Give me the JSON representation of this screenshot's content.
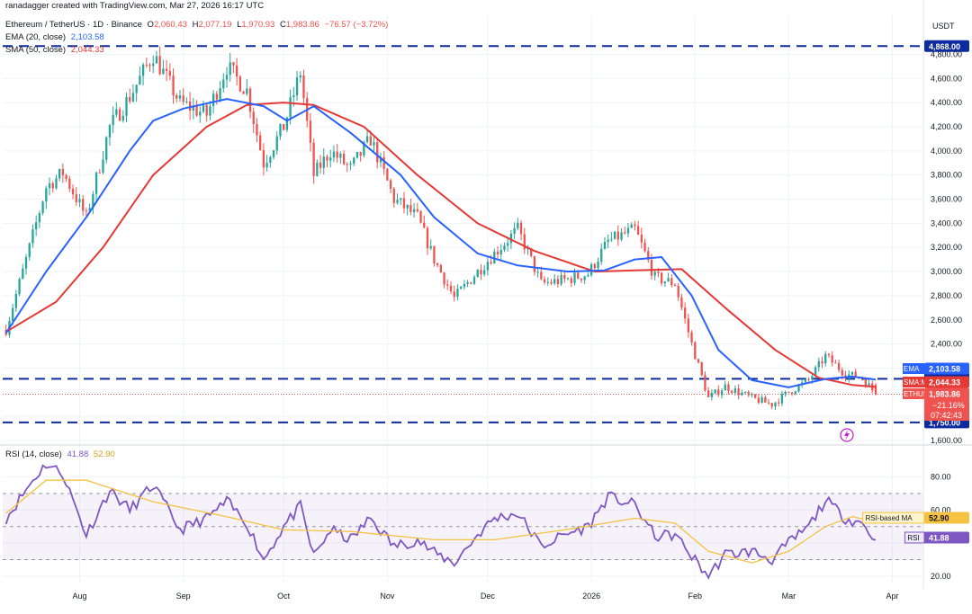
{
  "header": {
    "author_line": "ranadagger created with TradingView.com, Mar 27, 2026 16:17 UTC",
    "symbol": "Ethereum / TetherUS · 1D · Binance",
    "ohlc": {
      "o_label": "O",
      "o": "2,060.43",
      "h_label": "H",
      "h": "2,077.19",
      "l_label": "L",
      "l": "1,970.93",
      "c_label": "C",
      "c": "1,983.86",
      "change": "−76.57 (−3.72%)"
    },
    "ema_label": "EMA (20, close)",
    "ema_value": "2,103.58",
    "sma_label": "SMA (50, close)",
    "sma_value": "2,044.33",
    "rsi_label": "RSI (14, close)",
    "rsi_value": "41.88",
    "rsi_ma_value": "52.90"
  },
  "colors": {
    "up": "#26a69a",
    "down": "#ef5350",
    "ema": "#2962ff",
    "sma": "#e53935",
    "rsi": "#7e57c2",
    "rsi_ma": "#f5c242",
    "level": "#0d2a9e",
    "grid": "#f0f3fa",
    "axis_text": "#131722"
  },
  "chart_data": [
    {
      "type": "candlestick",
      "title": "Ethereum / TetherUS · 1D · Binance",
      "currency": "USDT",
      "ylim": [
        1600,
        4900
      ],
      "y_ticks": [
        1600,
        1800,
        2000,
        2200,
        2400,
        2600,
        2800,
        3000,
        3200,
        3400,
        3600,
        3800,
        4000,
        4200,
        4400,
        4600,
        4800
      ],
      "y_tick_labels": [
        "1,600.00",
        "1,800.00",
        "2,000.00",
        "2,200.00",
        "2,400.00",
        "2,600.00",
        "2,800.00",
        "3,000.00",
        "3,200.00",
        "3,400.00",
        "3,600.00",
        "3,800.00",
        "4,000.00",
        "4,200.00",
        "4,400.00",
        "4,600.00",
        "4,800.00"
      ],
      "x_ticks": [
        "Aug",
        "Sep",
        "Oct",
        "Nov",
        "Dec",
        "2026",
        "Feb",
        "Mar",
        "Apr"
      ],
      "horizontal_levels": [
        {
          "value": 4868,
          "label": "4,868.00"
        },
        {
          "value": 2111,
          "label": "2,111.00"
        },
        {
          "value": 1750,
          "label": "1,750.00"
        }
      ],
      "price_path": [
        {
          "date": "Jul 10",
          "price": 2520
        },
        {
          "date": "Jul 16",
          "price": 3100
        },
        {
          "date": "Jul 22",
          "price": 3700
        },
        {
          "date": "Jul 27",
          "price": 3820
        },
        {
          "date": "Aug 3",
          "price": 3450
        },
        {
          "date": "Aug 10",
          "price": 4200
        },
        {
          "date": "Aug 16",
          "price": 4450
        },
        {
          "date": "Aug 23",
          "price": 4800
        },
        {
          "date": "Aug 31",
          "price": 4400
        },
        {
          "date": "Sep 8",
          "price": 4300
        },
        {
          "date": "Sep 14",
          "price": 4700
        },
        {
          "date": "Sep 20",
          "price": 4500
        },
        {
          "date": "Sep 25",
          "price": 3900
        },
        {
          "date": "Oct 1",
          "price": 4200
        },
        {
          "date": "Oct 6",
          "price": 4650
        },
        {
          "date": "Oct 10",
          "price": 3800
        },
        {
          "date": "Oct 15",
          "price": 4000
        },
        {
          "date": "Oct 21",
          "price": 3850
        },
        {
          "date": "Oct 27",
          "price": 4100
        },
        {
          "date": "Nov 3",
          "price": 3600
        },
        {
          "date": "Nov 10",
          "price": 3450
        },
        {
          "date": "Nov 15",
          "price": 3100
        },
        {
          "date": "Nov 21",
          "price": 2780
        },
        {
          "date": "Nov 28",
          "price": 3000
        },
        {
          "date": "Dec 3",
          "price": 3150
        },
        {
          "date": "Dec 10",
          "price": 3350
        },
        {
          "date": "Dec 17",
          "price": 2900
        },
        {
          "date": "Dec 24",
          "price": 2930
        },
        {
          "date": "Dec 31",
          "price": 2980
        },
        {
          "date": "Jan 6",
          "price": 3250
        },
        {
          "date": "Jan 14",
          "price": 3350
        },
        {
          "date": "Jan 20",
          "price": 2950
        },
        {
          "date": "Jan 26",
          "price": 2900
        },
        {
          "date": "Jan 31",
          "price": 2400
        },
        {
          "date": "Feb 5",
          "price": 1950
        },
        {
          "date": "Feb 10",
          "price": 2050
        },
        {
          "date": "Feb 18",
          "price": 1950
        },
        {
          "date": "Feb 24",
          "price": 1900
        },
        {
          "date": "Mar 1",
          "price": 2000
        },
        {
          "date": "Mar 7",
          "price": 2100
        },
        {
          "date": "Mar 12",
          "price": 2300
        },
        {
          "date": "Mar 18",
          "price": 2150
        },
        {
          "date": "Mar 23",
          "price": 2120
        },
        {
          "date": "Mar 27",
          "price": 1984
        }
      ],
      "ema20_path": [
        {
          "date": "Jul 10",
          "value": 2490
        },
        {
          "date": "Jul 22",
          "value": 3000
        },
        {
          "date": "Aug 3",
          "value": 3450
        },
        {
          "date": "Aug 16",
          "value": 4000
        },
        {
          "date": "Aug 23",
          "value": 4250
        },
        {
          "date": "Sep 1",
          "value": 4350
        },
        {
          "date": "Sep 14",
          "value": 4430
        },
        {
          "date": "Sep 25",
          "value": 4370
        },
        {
          "date": "Oct 2",
          "value": 4250
        },
        {
          "date": "Oct 10",
          "value": 4370
        },
        {
          "date": "Oct 21",
          "value": 4150
        },
        {
          "date": "Nov 5",
          "value": 3800
        },
        {
          "date": "Nov 15",
          "value": 3450
        },
        {
          "date": "Nov 28",
          "value": 3150
        },
        {
          "date": "Dec 10",
          "value": 3050
        },
        {
          "date": "Dec 25",
          "value": 3000
        },
        {
          "date": "Jan 5",
          "value": 3010
        },
        {
          "date": "Jan 14",
          "value": 3100
        },
        {
          "date": "Jan 22",
          "value": 3120
        },
        {
          "date": "Jan 31",
          "value": 2800
        },
        {
          "date": "Feb 8",
          "value": 2350
        },
        {
          "date": "Feb 18",
          "value": 2100
        },
        {
          "date": "Mar 1",
          "value": 2040
        },
        {
          "date": "Mar 12",
          "value": 2110
        },
        {
          "date": "Mar 20",
          "value": 2130
        },
        {
          "date": "Mar 27",
          "value": 2104
        }
      ],
      "sma50_path": [
        {
          "date": "Jul 10",
          "value": 2500
        },
        {
          "date": "Jul 25",
          "value": 2750
        },
        {
          "date": "Aug 8",
          "value": 3200
        },
        {
          "date": "Aug 23",
          "value": 3800
        },
        {
          "date": "Sep 8",
          "value": 4200
        },
        {
          "date": "Sep 20",
          "value": 4380
        },
        {
          "date": "Oct 1",
          "value": 4400
        },
        {
          "date": "Oct 10",
          "value": 4380
        },
        {
          "date": "Oct 25",
          "value": 4200
        },
        {
          "date": "Nov 10",
          "value": 3800
        },
        {
          "date": "Nov 28",
          "value": 3400
        },
        {
          "date": "Dec 15",
          "value": 3170
        },
        {
          "date": "Jan 2",
          "value": 3000
        },
        {
          "date": "Jan 14",
          "value": 3010
        },
        {
          "date": "Jan 28",
          "value": 3020
        },
        {
          "date": "Feb 10",
          "value": 2700
        },
        {
          "date": "Feb 25",
          "value": 2350
        },
        {
          "date": "Mar 10",
          "value": 2120
        },
        {
          "date": "Mar 20",
          "value": 2060
        },
        {
          "date": "Mar 27",
          "value": 2044
        }
      ],
      "series_labels": [
        {
          "name": "EMA",
          "value": "2,103.58"
        },
        {
          "name": "SMA:MA",
          "value": "2,044.33"
        },
        {
          "name": "ETHUSDT",
          "value": "1,983.86",
          "extra": [
            "−21.16%",
            "07:42:43"
          ]
        }
      ],
      "last_price": 1983.86
    },
    {
      "type": "line",
      "title": "RSI (14, close)",
      "ylim": [
        15,
        95
      ],
      "y_ticks": [
        20,
        40,
        60,
        80
      ],
      "y_tick_labels": [
        "20.00",
        "",
        "60.00",
        "80.00"
      ],
      "overbought": 70,
      "oversold": 30,
      "midline": 50,
      "series": [
        {
          "name": "RSI",
          "values_path": [
            {
              "date": "Jul 10",
              "value": 55
            },
            {
              "date": "Jul 18",
              "value": 78
            },
            {
              "date": "Jul 22",
              "value": 88
            },
            {
              "date": "Jul 27",
              "value": 82
            },
            {
              "date": "Aug 3",
              "value": 45
            },
            {
              "date": "Aug 10",
              "value": 72
            },
            {
              "date": "Aug 16",
              "value": 60
            },
            {
              "date": "Aug 23",
              "value": 75
            },
            {
              "date": "Aug 31",
              "value": 48
            },
            {
              "date": "Sep 8",
              "value": 55
            },
            {
              "date": "Sep 14",
              "value": 65
            },
            {
              "date": "Sep 20",
              "value": 52
            },
            {
              "date": "Sep 25",
              "value": 30
            },
            {
              "date": "Oct 1",
              "value": 50
            },
            {
              "date": "Oct 6",
              "value": 62
            },
            {
              "date": "Oct 10",
              "value": 32
            },
            {
              "date": "Oct 15",
              "value": 48
            },
            {
              "date": "Oct 21",
              "value": 42
            },
            {
              "date": "Oct 27",
              "value": 55
            },
            {
              "date": "Nov 3",
              "value": 38
            },
            {
              "date": "Nov 10",
              "value": 42
            },
            {
              "date": "Nov 15",
              "value": 34
            },
            {
              "date": "Nov 21",
              "value": 28
            },
            {
              "date": "Nov 28",
              "value": 45
            },
            {
              "date": "Dec 3",
              "value": 55
            },
            {
              "date": "Dec 10",
              "value": 58
            },
            {
              "date": "Dec 17",
              "value": 38
            },
            {
              "date": "Dec 24",
              "value": 45
            },
            {
              "date": "Dec 31",
              "value": 50
            },
            {
              "date": "Jan 6",
              "value": 68
            },
            {
              "date": "Jan 14",
              "value": 63
            },
            {
              "date": "Jan 20",
              "value": 44
            },
            {
              "date": "Jan 26",
              "value": 45
            },
            {
              "date": "Jan 31",
              "value": 32
            },
            {
              "date": "Feb 5",
              "value": 20
            },
            {
              "date": "Feb 10",
              "value": 33
            },
            {
              "date": "Feb 18",
              "value": 35
            },
            {
              "date": "Feb 24",
              "value": 30
            },
            {
              "date": "Mar 1",
              "value": 40
            },
            {
              "date": "Mar 7",
              "value": 50
            },
            {
              "date": "Mar 12",
              "value": 66
            },
            {
              "date": "Mar 18",
              "value": 55
            },
            {
              "date": "Mar 23",
              "value": 52
            },
            {
              "date": "Mar 27",
              "value": 41.88
            }
          ]
        },
        {
          "name": "RSI-based MA",
          "values_path": [
            {
              "date": "Jul 10",
              "value": 58
            },
            {
              "date": "Jul 22",
              "value": 78
            },
            {
              "date": "Aug 3",
              "value": 78
            },
            {
              "date": "Aug 23",
              "value": 65
            },
            {
              "date": "Sep 14",
              "value": 56
            },
            {
              "date": "Oct 1",
              "value": 48
            },
            {
              "date": "Oct 21",
              "value": 47
            },
            {
              "date": "Nov 15",
              "value": 42
            },
            {
              "date": "Dec 3",
              "value": 42
            },
            {
              "date": "Dec 24",
              "value": 48
            },
            {
              "date": "Jan 14",
              "value": 55
            },
            {
              "date": "Jan 26",
              "value": 52
            },
            {
              "date": "Feb 5",
              "value": 35
            },
            {
              "date": "Feb 18",
              "value": 28
            },
            {
              "date": "Mar 1",
              "value": 35
            },
            {
              "date": "Mar 12",
              "value": 50
            },
            {
              "date": "Mar 20",
              "value": 56
            },
            {
              "date": "Mar 27",
              "value": 52.9
            }
          ]
        }
      ],
      "series_labels": [
        {
          "name": "RSI-based MA",
          "value": "52.90"
        },
        {
          "name": "RSI",
          "value": "41.88"
        }
      ]
    }
  ]
}
